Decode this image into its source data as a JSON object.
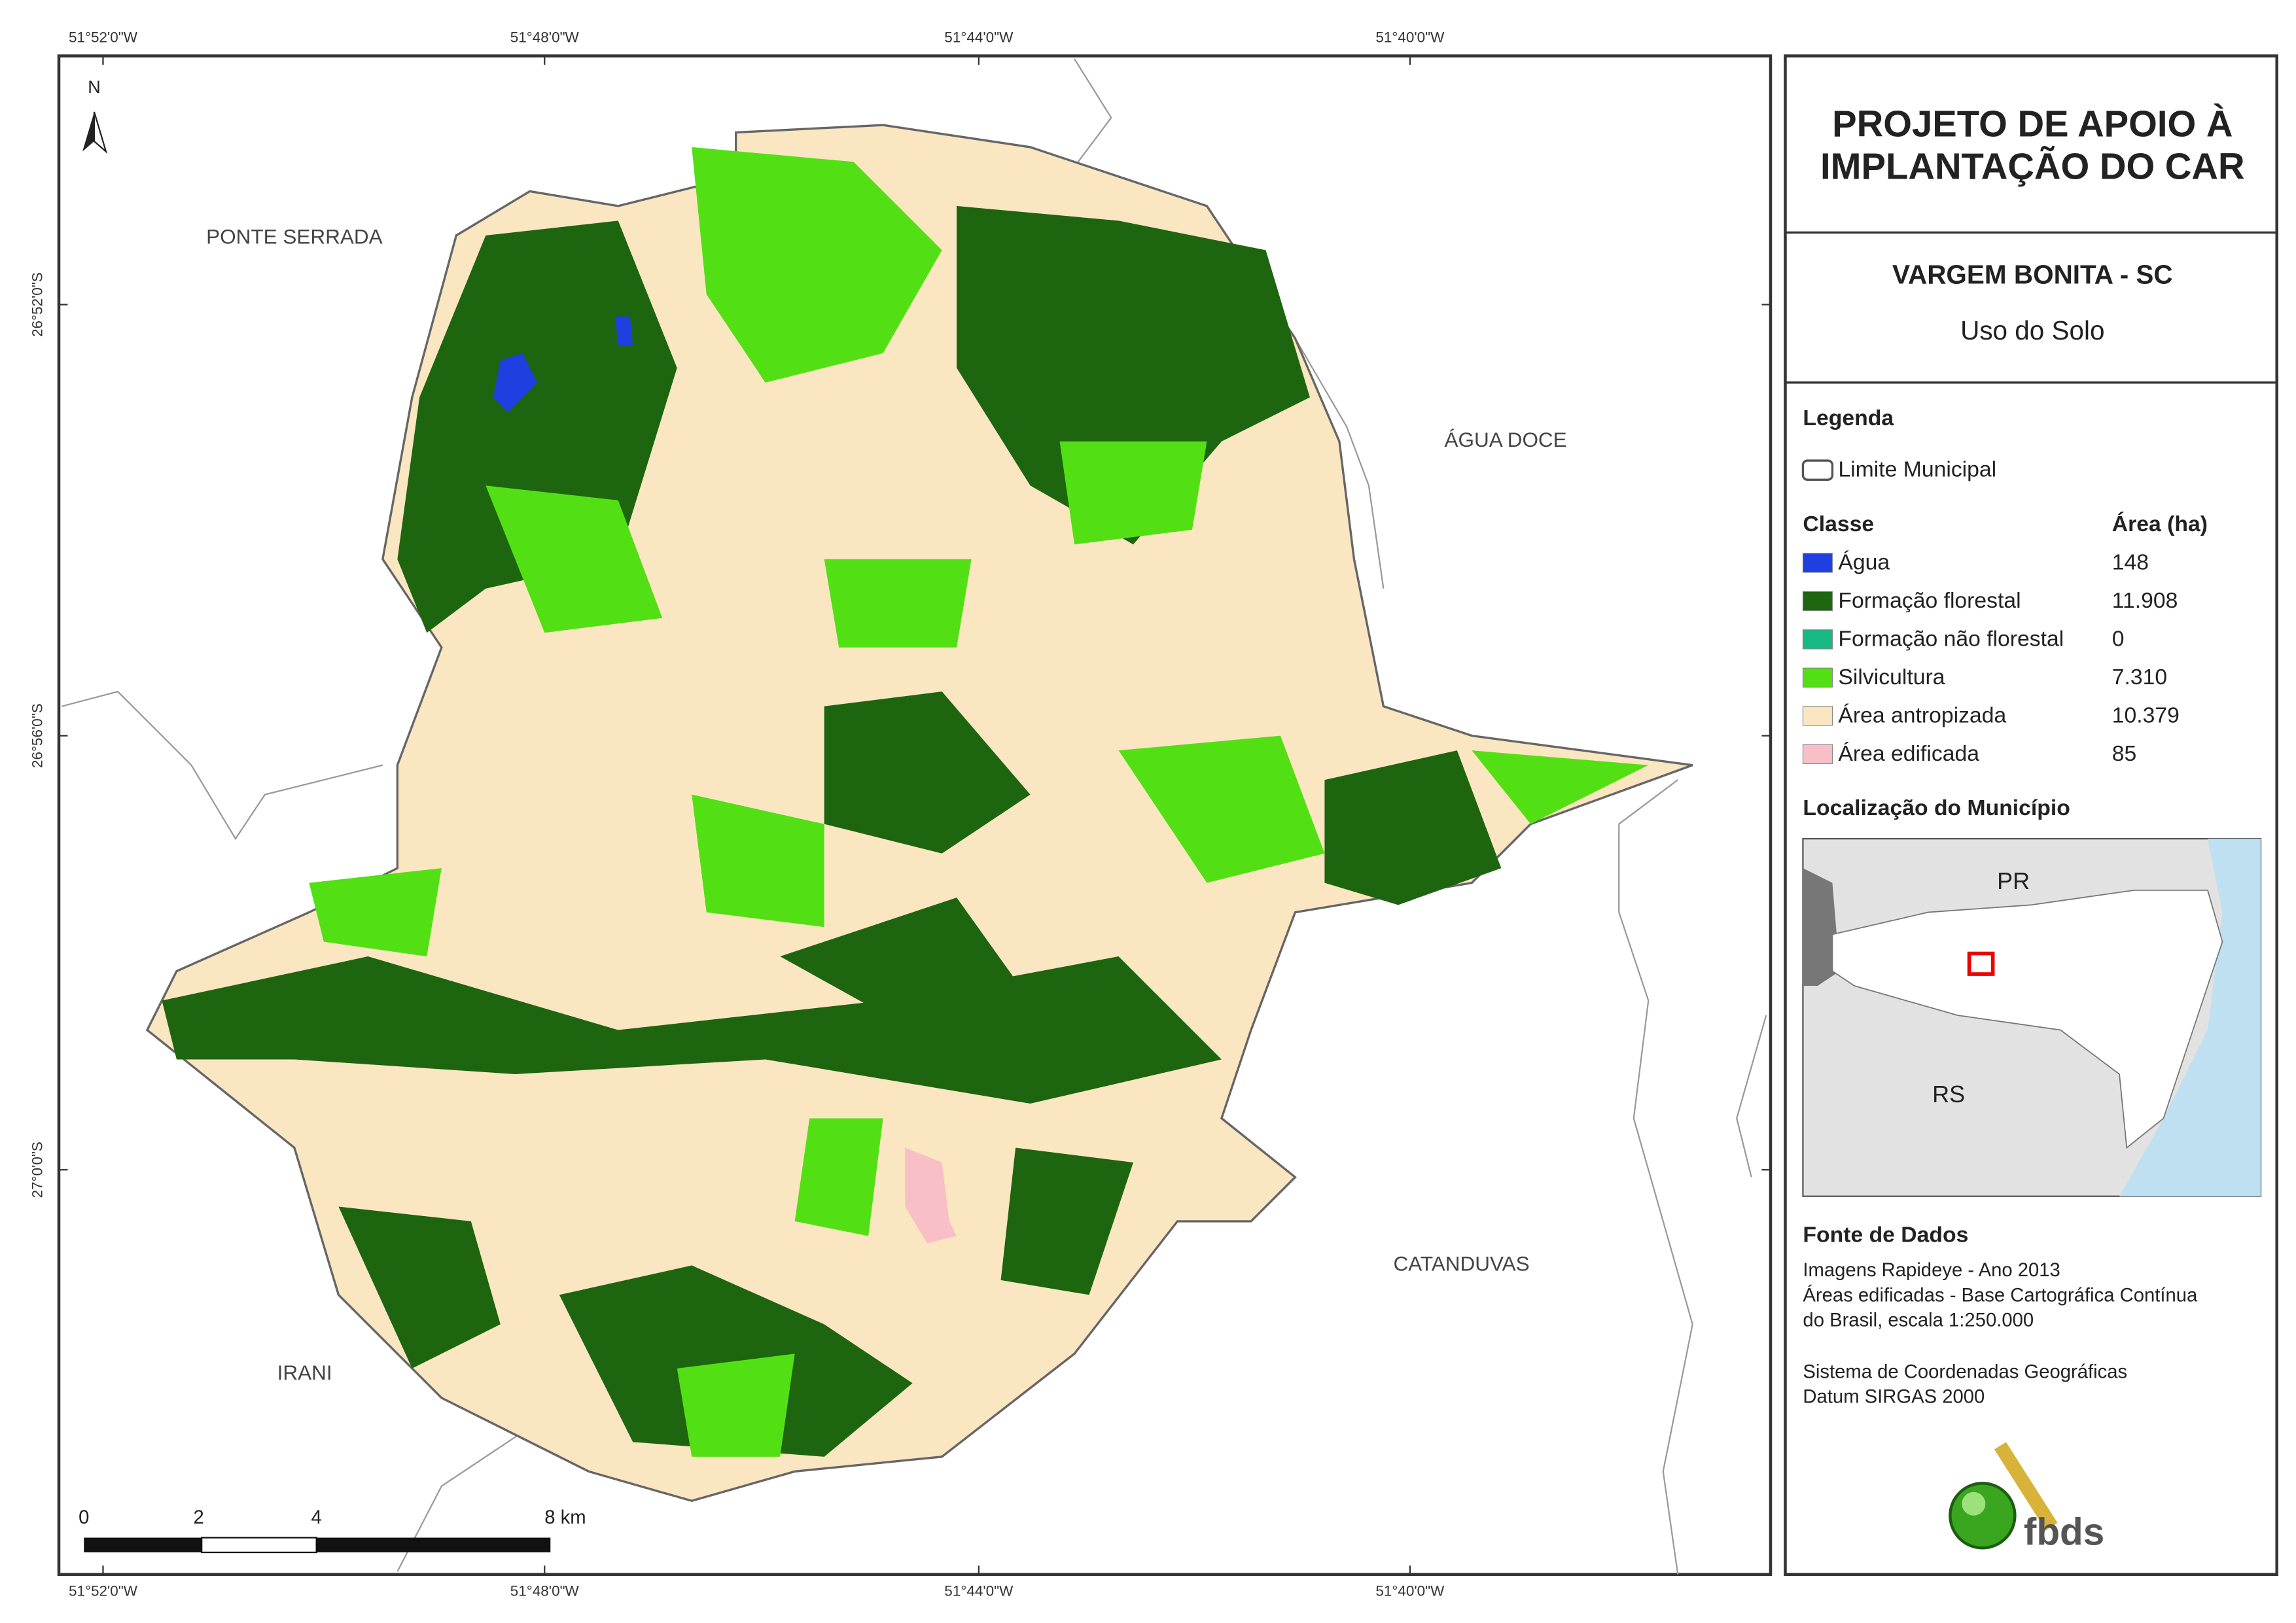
{
  "graticule": {
    "longitudes": [
      "51°52'0\"W",
      "51°48'0\"W",
      "51°44'0\"W",
      "51°40'0\"W"
    ],
    "latitudes": [
      "26°52'0\"S",
      "26°56'0\"S",
      "27°0'0\"S"
    ]
  },
  "north_arrow": "N",
  "places": [
    "PONTE SERRADA",
    "ÁGUA DOCE",
    "CATANDUVAS",
    "IRANI"
  ],
  "scale_bar": [
    "0",
    "2",
    "4",
    "8 km"
  ],
  "header": {
    "title_lines": [
      "PROJETO DE APOIO À",
      "IMPLANTAÇÃO DO CAR"
    ],
    "municipality": "VARGEM BONITA - SC",
    "theme": "Uso do Solo"
  },
  "legend": {
    "title": "Legenda",
    "boundary": "Limite Municipal",
    "class_header": "Classe",
    "area_header": "Área (ha)",
    "classes": [
      {
        "name": "Água",
        "area": "148",
        "color": "#1f3fe0"
      },
      {
        "name": "Formação florestal",
        "area": "11.908",
        "color": "#1e6510"
      },
      {
        "name": "Formação não florestal",
        "area": "0",
        "color": "#17b884"
      },
      {
        "name": "Silvicultura",
        "area": "7.310",
        "color": "#52e014"
      },
      {
        "name": "Área antropizada",
        "area": "10.379",
        "color": "#fbe6c2"
      },
      {
        "name": "Área edificada",
        "area": "85",
        "color": "#f8bfc6"
      }
    ]
  },
  "location": {
    "title": "Localização do Município",
    "labels": [
      "PR",
      "RS"
    ]
  },
  "sources": {
    "title": "Fonte de Dados",
    "lines": [
      "Imagens Rapideye - Ano 2013",
      "Áreas edificadas - Base Cartográfica Contínua",
      "do Brasil, escala 1:250.000"
    ],
    "crs_lines": [
      "Sistema de Coordenadas Geográficas",
      "Datum SIRGAS 2000"
    ]
  },
  "logo": "fbds"
}
